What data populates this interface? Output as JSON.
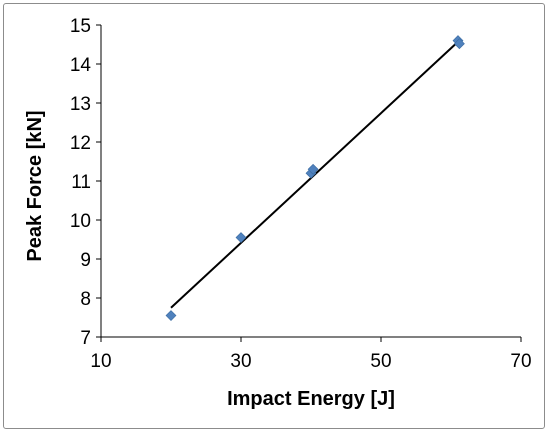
{
  "chart_data": {
    "type": "scatter",
    "title": "",
    "xlabel": "Impact Energy [J]",
    "ylabel": "Peak Force [kN]",
    "xlim": [
      10,
      70
    ],
    "ylim": [
      7,
      15
    ],
    "xticks": [
      10,
      30,
      50,
      70
    ],
    "yticks": [
      7,
      8,
      9,
      10,
      11,
      12,
      13,
      14,
      15
    ],
    "grid": false,
    "legend": "none",
    "marker": "diamond",
    "marker_color": "#4f81bd",
    "line_color": "#000000",
    "series": [
      {
        "points": [
          {
            "x": 20,
            "y": 7.55
          },
          {
            "x": 30,
            "y": 9.55
          },
          {
            "x": 40,
            "y": 11.2
          },
          {
            "x": 40.3,
            "y": 11.3
          },
          {
            "x": 61,
            "y": 14.6
          },
          {
            "x": 61.2,
            "y": 14.52
          }
        ]
      }
    ],
    "trendline": {
      "type": "linear",
      "x": [
        20,
        61
      ],
      "y": [
        7.75,
        14.57
      ]
    }
  }
}
